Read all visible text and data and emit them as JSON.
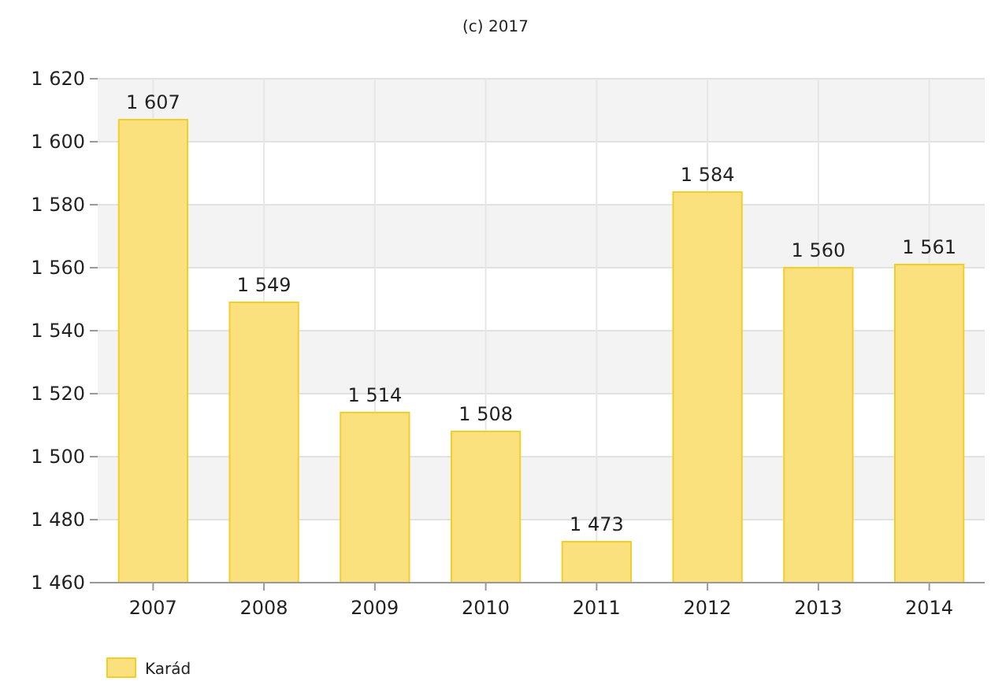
{
  "chart_data": {
    "type": "bar",
    "annotations": [
      "(c) 2017"
    ],
    "categories": [
      "2007",
      "2008",
      "2009",
      "2010",
      "2011",
      "2012",
      "2013",
      "2014"
    ],
    "series": [
      {
        "name": "Karád",
        "color": "#fbe17e",
        "values": [
          1607,
          1549,
          1514,
          1508,
          1473,
          1584,
          1560,
          1561
        ]
      }
    ],
    "value_labels": [
      "1 607",
      "1 549",
      "1 514",
      "1 508",
      "1 473",
      "1 584",
      "1 560",
      "1 561"
    ],
    "ylim": [
      1460,
      1620
    ],
    "yticks": [
      {
        "value": 1460,
        "label": "1 460"
      },
      {
        "value": 1480,
        "label": "1 480"
      },
      {
        "value": 1500,
        "label": "1 500"
      },
      {
        "value": 1520,
        "label": "1 520"
      },
      {
        "value": 1540,
        "label": "1 540"
      },
      {
        "value": 1560,
        "label": "1 560"
      },
      {
        "value": 1580,
        "label": "1 580"
      },
      {
        "value": 1600,
        "label": "1 600"
      },
      {
        "value": 1620,
        "label": "1 620"
      }
    ],
    "grid": true,
    "legend": "bottom left"
  }
}
